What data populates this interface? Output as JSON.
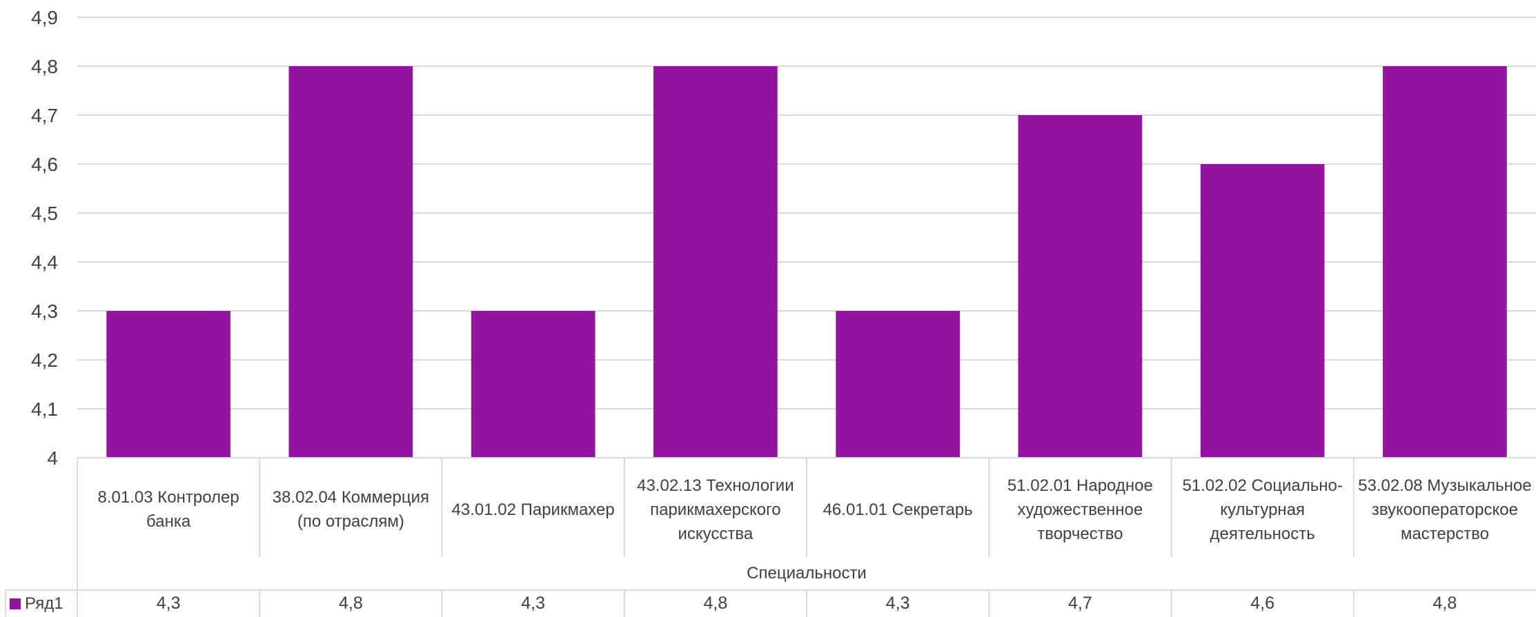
{
  "chart_data": {
    "type": "bar",
    "categories": [
      "8.01.03 Контролер банка",
      "38.02.04 Коммерция (по отраслям)",
      "43.01.02 Парикмахер",
      "43.02.13 Технологии парикмахерского искусства",
      "46.01.01 Секретарь",
      "51.02.01 Народное художественное творчество",
      "51.02.02 Социально-культурная деятельность",
      "53.02.08 Музыкальное звукооператорское мастерство"
    ],
    "series": [
      {
        "name": "Ряд1",
        "values": [
          4.3,
          4.8,
          4.3,
          4.8,
          4.3,
          4.7,
          4.6,
          4.8
        ],
        "color": "#93159f"
      }
    ],
    "value_labels": [
      "4,3",
      "4,8",
      "4,3",
      "4,8",
      "4,3",
      "4,7",
      "4,6",
      "4,8"
    ],
    "xlabel": "Специальности",
    "ylabel": "",
    "title": "",
    "ylim": [
      4.0,
      4.9
    ],
    "yticks": [
      4.0,
      4.1,
      4.2,
      4.3,
      4.4,
      4.5,
      4.6,
      4.7,
      4.8,
      4.9
    ],
    "ytick_labels": [
      "4",
      "4,1",
      "4,2",
      "4,3",
      "4,4",
      "4,5",
      "4,6",
      "4,7",
      "4,8",
      "4,9"
    ],
    "grid": true,
    "legend": "data-table-left",
    "data_table": true
  }
}
